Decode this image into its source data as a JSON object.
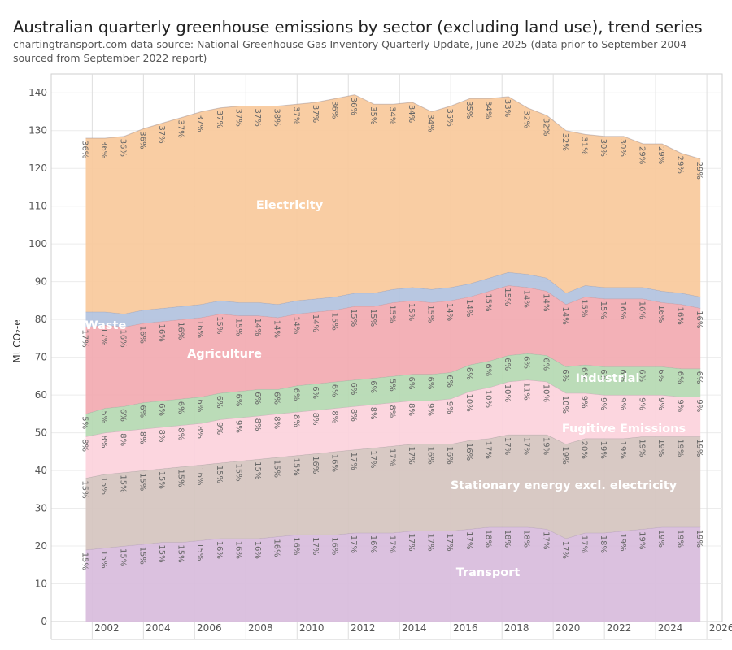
{
  "header": {
    "title": "Australian quarterly greenhouse emissions by sector (excluding land use), trend series",
    "subtitle": "chartingtransport.com  data source: National Greenhouse Gas Inventory Quarterly Update, June 2025 (data prior to September 2004 sourced from September 2022 report)"
  },
  "chart_data": {
    "type": "area",
    "stacked": true,
    "ylabel": "Mt CO₂-e",
    "xlabel": "",
    "ylim": [
      0,
      145
    ],
    "xlim": [
      2000.4,
      2026.6
    ],
    "y_ticks": [
      0,
      10,
      20,
      30,
      40,
      50,
      60,
      70,
      80,
      90,
      100,
      110,
      120,
      130,
      140
    ],
    "y_tick_labels": [
      "0",
      "10",
      "20",
      "30",
      "40",
      "50",
      "60",
      "70",
      "80",
      "90",
      "100",
      "110",
      "120",
      "130",
      "140"
    ],
    "x_ticks": [
      2002,
      2004,
      2006,
      2008,
      2010,
      2012,
      2014,
      2016,
      2018,
      2020,
      2022,
      2024,
      2026
    ],
    "x_tick_labels": [
      "2002",
      "2004",
      "2006",
      "2008",
      "2010",
      "2012",
      "2014",
      "2016",
      "2018",
      "2020",
      "2022",
      "2024",
      "2026"
    ],
    "grid": true,
    "x": [
      2001.75,
      2002.5,
      2003.25,
      2004.0,
      2004.75,
      2005.5,
      2006.25,
      2007.0,
      2007.75,
      2008.5,
      2009.25,
      2010.0,
      2010.75,
      2011.5,
      2012.25,
      2013.0,
      2013.75,
      2014.5,
      2015.25,
      2016.0,
      2016.75,
      2017.5,
      2018.25,
      2019.0,
      2019.75,
      2020.5,
      2021.25,
      2022.0,
      2022.75,
      2023.5,
      2024.25,
      2025.0,
      2025.75
    ],
    "series": [
      {
        "name": "Transport",
        "color": "#d8bcdc",
        "values": [
          19,
          19.5,
          20,
          20.5,
          21,
          21,
          21.5,
          22,
          22,
          22,
          22.5,
          23,
          23,
          23,
          23.5,
          23.5,
          23.5,
          24,
          24,
          24,
          24.5,
          25,
          25,
          25,
          24.5,
          22,
          23.5,
          23.5,
          24,
          24.5,
          25,
          25,
          25
        ],
        "pct_labels": [
          "15%",
          "15%",
          "15%",
          "15%",
          "15%",
          "15%",
          "15%",
          "16%",
          "16%",
          "16%",
          "16%",
          "16%",
          "17%",
          "16%",
          "17%",
          "16%",
          "17%",
          "17%",
          "17%",
          "17%",
          "17%",
          "18%",
          "18%",
          "18%",
          "17%",
          "17%",
          "17%",
          "18%",
          "19%",
          "19%",
          "19%",
          "19%",
          "19%"
        ]
      },
      {
        "name": "Stationary energy excl. electricity",
        "color": "#d5c4bf",
        "values": [
          19,
          19.5,
          19.5,
          19.5,
          19.5,
          20,
          20,
          20,
          20.5,
          21,
          21,
          21,
          21.5,
          22,
          22,
          22.5,
          23,
          23,
          23,
          23,
          23.5,
          23.5,
          24.5,
          24.5,
          25,
          25,
          25,
          25,
          24.5,
          24.5,
          24,
          24,
          24
        ],
        "pct_labels": [
          "15%",
          "15%",
          "15%",
          "15%",
          "15%",
          "15%",
          "16%",
          "15%",
          "15%",
          "15%",
          "15%",
          "15%",
          "16%",
          "16%",
          "17%",
          "17%",
          "17%",
          "17%",
          "16%",
          "16%",
          "16%",
          "17%",
          "17%",
          "17%",
          "19%",
          "19%",
          "20%",
          "19%",
          "19%",
          "19%",
          "19%",
          "19%",
          "19%"
        ]
      },
      {
        "name": "Fugitive Emissions",
        "color": "#fcd3dc",
        "values": [
          11,
          11,
          11,
          11,
          11,
          11,
          11,
          11.5,
          11.5,
          11.5,
          11.5,
          11.5,
          11.5,
          11.5,
          11.5,
          11.5,
          11.5,
          11.5,
          11.5,
          12,
          13,
          13.5,
          14,
          14.5,
          14,
          13.5,
          12,
          11.5,
          11.5,
          11,
          11,
          10.5,
          10.5
        ],
        "pct_labels": [
          "8%",
          "8%",
          "8%",
          "8%",
          "8%",
          "8%",
          "8%",
          "9%",
          "9%",
          "8%",
          "8%",
          "8%",
          "8%",
          "8%",
          "8%",
          "8%",
          "8%",
          "8%",
          "9%",
          "9%",
          "10%",
          "10%",
          "10%",
          "11%",
          "10%",
          "10%",
          "9%",
          "9%",
          "9%",
          "9%",
          "9%",
          "9%",
          "9%"
        ]
      },
      {
        "name": "Industrial",
        "color": "#b5d9b2",
        "values": [
          6,
          6.5,
          6.5,
          7,
          7,
          7,
          7,
          7,
          7,
          7,
          6.5,
          7,
          7,
          7,
          7,
          7,
          7,
          7,
          7,
          7,
          7,
          7,
          7,
          7,
          7,
          7,
          7.5,
          7.5,
          7.5,
          7.5,
          7.5,
          7.5,
          7.5
        ],
        "pct_labels": [
          "5%",
          "5%",
          "6%",
          "6%",
          "6%",
          "6%",
          "6%",
          "6%",
          "6%",
          "6%",
          "6%",
          "6%",
          "6%",
          "6%",
          "6%",
          "6%",
          "5%",
          "6%",
          "6%",
          "6%",
          "6%",
          "6%",
          "6%",
          "6%",
          "6%",
          "6%",
          "6%",
          "6%",
          "6%",
          "6%",
          "6%",
          "6%",
          "6%"
        ]
      },
      {
        "name": "Agriculture",
        "color": "#f2aab1",
        "values": [
          23,
          22,
          21,
          21,
          21,
          21,
          21,
          21,
          20,
          19.5,
          19,
          19,
          19,
          19,
          19.5,
          19,
          19.5,
          19.5,
          19,
          19,
          18,
          18.5,
          18.5,
          17.5,
          17,
          16.5,
          18,
          18,
          18,
          18,
          17,
          17,
          16
        ],
        "pct_labels": [
          "17%",
          "17%",
          "16%",
          "16%",
          "16%",
          "16%",
          "16%",
          "15%",
          "15%",
          "14%",
          "14%",
          "14%",
          "14%",
          "15%",
          "15%",
          "15%",
          "15%",
          "15%",
          "15%",
          "14%",
          "14%",
          "15%",
          "15%",
          "14%",
          "14%",
          "14%",
          "15%",
          "15%",
          "16%",
          "16%",
          "16%",
          "16%",
          "16%"
        ]
      },
      {
        "name": "Waste",
        "color": "#b2c2de",
        "values": [
          4,
          3.5,
          3.5,
          3.5,
          3.5,
          3.5,
          3.5,
          3.5,
          3.5,
          3.5,
          3.5,
          3.5,
          3.5,
          3.5,
          3.5,
          3.5,
          3.5,
          3.5,
          3.5,
          3.5,
          3.5,
          3.5,
          3.5,
          3.5,
          3.5,
          3,
          3,
          3,
          3,
          3,
          3,
          3,
          3
        ],
        "pct_labels": []
      },
      {
        "name": "Electricity",
        "color": "#f8c99b",
        "values": [
          46,
          46,
          47,
          48,
          49,
          50,
          51,
          51,
          52,
          52,
          52.5,
          52,
          52,
          52.5,
          52.5,
          50,
          49,
          49,
          47,
          48,
          49,
          47.5,
          46.5,
          44,
          43,
          43,
          40,
          40,
          40,
          38,
          39,
          37,
          36.5
        ],
        "pct_labels": [
          "36%",
          "36%",
          "36%",
          "36%",
          "37%",
          "37%",
          "37%",
          "37%",
          "37%",
          "37%",
          "38%",
          "37%",
          "37%",
          "36%",
          "36%",
          "35%",
          "34%",
          "34%",
          "34%",
          "35%",
          "35%",
          "34%",
          "33%",
          "32%",
          "32%",
          "32%",
          "31%",
          "30%",
          "30%",
          "29%",
          "29%",
          "29%",
          "29%"
        ]
      }
    ],
    "series_labels": {
      "Transport": "Transport",
      "Stationary energy excl. electricity": "Stationary energy excl. electricity",
      "Fugitive Emissions": "Fugitive Emissions",
      "Industrial": "Industrial",
      "Agriculture": "Agriculture",
      "Waste": "Waste",
      "Electricity": "Electricity"
    }
  }
}
